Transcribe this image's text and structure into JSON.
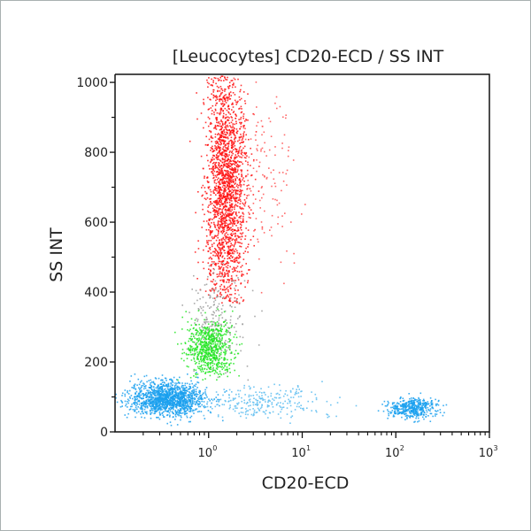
{
  "chart_data": {
    "type": "scatter",
    "title": "[Leucocytes] CD20-ECD / SS INT",
    "xlabel": "CD20-ECD",
    "ylabel": "SS INT",
    "xscale": "log",
    "xlim": [
      0.1,
      1000
    ],
    "ylim": [
      0,
      1023
    ],
    "x_ticks": [
      {
        "base": "10",
        "exp": "0",
        "value": 1
      },
      {
        "base": "10",
        "exp": "1",
        "value": 10
      },
      {
        "base": "10",
        "exp": "2",
        "value": 100
      },
      {
        "base": "10",
        "exp": "3",
        "value": 1000
      }
    ],
    "y_ticks": [
      "0",
      "200",
      "400",
      "600",
      "800",
      "1000"
    ],
    "y_tick_values": [
      0,
      200,
      400,
      600,
      800,
      1000
    ],
    "grid": false,
    "populations": [
      {
        "color": "#ff1010",
        "x_center": 1.5,
        "x_spread_decades": 0.11,
        "y_center": 700,
        "y_spread": 190,
        "y_min": 370,
        "count": 2200
      },
      {
        "color": "#ff5050",
        "x_center": 4.0,
        "x_spread_decades": 0.18,
        "y_center": 750,
        "y_spread": 170,
        "y_min": 400,
        "count": 150
      },
      {
        "color": "#9a9a9a",
        "x_center": 1.2,
        "x_spread_decades": 0.15,
        "y_center": 320,
        "y_spread": 70,
        "y_min": 150,
        "count": 220
      },
      {
        "color": "#22e622",
        "x_center": 1.0,
        "x_spread_decades": 0.12,
        "y_center": 240,
        "y_spread": 40,
        "y_min": 150,
        "count": 700
      },
      {
        "color": "#1aa0ee",
        "x_center": 0.35,
        "x_spread_decades": 0.2,
        "y_center": 95,
        "y_spread": 25,
        "y_min": 20,
        "count": 1400
      },
      {
        "color": "#5bbcf0",
        "x_center": 3.5,
        "x_spread_decades": 0.35,
        "y_center": 90,
        "y_spread": 25,
        "y_min": 20,
        "count": 260
      },
      {
        "color": "#1aa0ee",
        "x_center": 150,
        "x_spread_decades": 0.13,
        "y_center": 70,
        "y_spread": 14,
        "y_min": 20,
        "count": 450
      }
    ]
  }
}
